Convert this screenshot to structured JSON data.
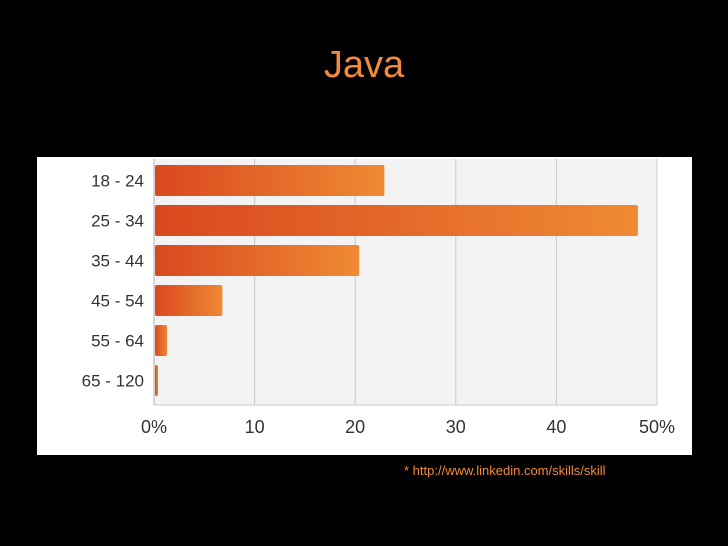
{
  "slide": {
    "title": "Java",
    "footnote": "* http://www.linkedin.com/skills/skill"
  },
  "colors": {
    "background": "#000000",
    "title": "#f08a3c",
    "bar_start": "#d9481f",
    "bar_end": "#ef8a33",
    "plot_bg": "#f3f3f3",
    "grid": "#c8c8c8"
  },
  "chart_data": {
    "type": "bar",
    "orientation": "horizontal",
    "title": "",
    "xlabel": "",
    "ylabel": "",
    "categories": [
      "18 - 24",
      "25 - 34",
      "35 - 44",
      "45 - 54",
      "55 - 64",
      "65 - 120"
    ],
    "values": [
      22.8,
      48.0,
      20.3,
      6.7,
      1.2,
      0.3
    ],
    "xlim": [
      0,
      50
    ],
    "xticks": [
      0,
      10,
      20,
      30,
      40,
      50
    ],
    "xtick_labels": [
      "0%",
      "10",
      "20",
      "30",
      "40",
      "50%"
    ],
    "grid": true,
    "legend": false
  }
}
